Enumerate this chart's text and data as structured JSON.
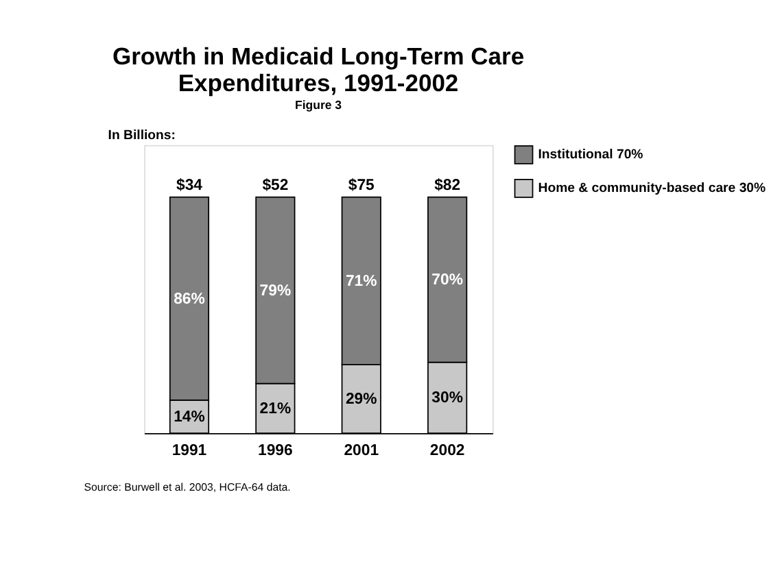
{
  "chart_data": {
    "type": "bar",
    "subtitle": "Figure 3",
    "title": "Growth in Medicaid Long-Term Care Expenditures, 1991-2002",
    "categories": [
      "1991",
      "1996",
      "2001",
      "2002"
    ],
    "stacked": true,
    "series": [
      {
        "name": "Home & community-based care  30%",
        "color": "#c8c8c8",
        "values": [
          14,
          21,
          29,
          30
        ],
        "value_labels": [
          "14%",
          "21%",
          "29%",
          "30%"
        ]
      },
      {
        "name": "Institutional  70%",
        "color": "#808080",
        "values": [
          86,
          79,
          71,
          70
        ],
        "value_labels": [
          "86%",
          "79%",
          "71%",
          "70%"
        ]
      }
    ],
    "legend": "top right",
    "annotations": [
      "In Billions:",
      "Source:  Burwell et al. 2003, HCFA-64 data.",
      "$34",
      "$52",
      "$75",
      "$82"
    ]
  }
}
